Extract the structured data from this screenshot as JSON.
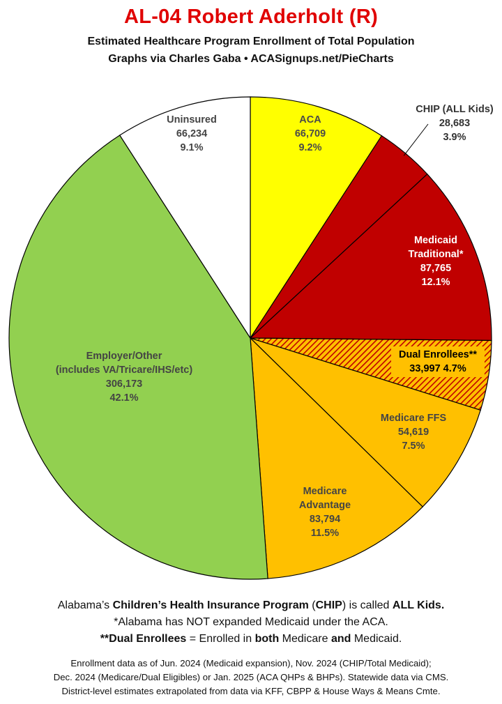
{
  "header": {
    "title": "AL-04 Robert Aderholt (R)",
    "subtitle": "Estimated Healthcare Program Enrollment of Total Population",
    "credit": "Graphs via Charles Gaba   •   ACASignups.net/PieCharts"
  },
  "chart_data": {
    "type": "pie",
    "start_angle_deg": 0,
    "direction": "clockwise",
    "slices": [
      {
        "label": "ACA",
        "value": 66709,
        "value_text": "66,709",
        "percent": "9.2%",
        "color": "#ffff00",
        "hatched": false,
        "text_color": "#4a4a4a"
      },
      {
        "label": "CHIP (ALL Kids)",
        "value": 28683,
        "value_text": "28,683",
        "percent": "3.9%",
        "color": "#c00000",
        "hatched": false,
        "text_color": "#333333"
      },
      {
        "label": "Medicaid Traditional*",
        "value": 87765,
        "value_text": "87,765",
        "percent": "12.1%",
        "color": "#c00000",
        "hatched": false,
        "text_color": "#ffffff"
      },
      {
        "label": "Dual Enrollees**",
        "value": 33997,
        "value_text": "33,997 4.7%",
        "percent": "",
        "color": "#ffc000",
        "hatched": true,
        "hatch_color": "#c00000",
        "text_color": "#000000"
      },
      {
        "label": "Medicare FFS",
        "value": 54619,
        "value_text": "54,619",
        "percent": "7.5%",
        "color": "#ffc000",
        "hatched": false,
        "text_color": "#444444"
      },
      {
        "label": "Medicare Advantage",
        "value": 83794,
        "value_text": "83,794",
        "percent": "11.5%",
        "color": "#ffc000",
        "hatched": false,
        "text_color": "#444444"
      },
      {
        "label": "Employer/Other (includes VA/Tricare/IHS/etc)",
        "value": 306173,
        "value_text": "306,173",
        "percent": "42.1%",
        "color": "#92d050",
        "hatched": false,
        "text_color": "#444444"
      },
      {
        "label": "Uninsured",
        "value": 66234,
        "value_text": "66,234",
        "percent": "9.1%",
        "color": "#ffffff",
        "hatched": false,
        "text_color": "#444444"
      }
    ]
  },
  "notes": {
    "line1_pre": "Alabama’s ",
    "line1_bold1": "Children’s Health Insurance Program",
    "line1_mid": " (",
    "line1_bold2": "CHIP",
    "line1_mid2": ") is called ",
    "line1_bold3": "ALL Kids.",
    "line2": "*Alabama has NOT expanded Medicaid under the ACA.",
    "line3_bold1": "**Dual Enrollees",
    "line3_mid": " = Enrolled in ",
    "line3_bold2": "both",
    "line3_mid2": " Medicare ",
    "line3_bold3": "and",
    "line3_end": " Medicaid."
  },
  "source": {
    "line1": "Enrollment data as of Jun. 2024 (Medicaid expansion), Nov. 2024 (CHIP/Total Medicaid);",
    "line2": "Dec. 2024 (Medicare/Dual Eligibles) or Jan. 2025 (ACA QHPs & BHPs). Statewide data via CMS.",
    "line3": "District-level estimates extrapolated from data via KFF, CBPP & House Ways & Means Cmte."
  }
}
